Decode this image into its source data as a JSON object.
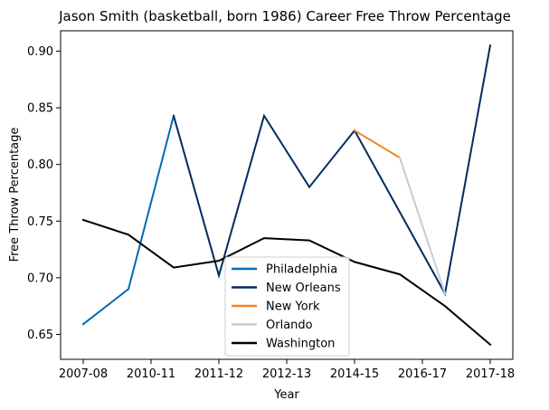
{
  "chart_data": {
    "type": "line",
    "title": "Jason Smith (basketball, born 1986) Career Free Throw Percentage",
    "xlabel": "Year",
    "ylabel": "Free Throw Percentage",
    "x_ticks": [
      "2007-08",
      "2010-11",
      "2011-12",
      "2012-13",
      "2014-15",
      "2016-17",
      "2017-18"
    ],
    "xlim": [
      -0.5,
      9.5
    ],
    "ylim": [
      0.628,
      0.918
    ],
    "y_ticks": [
      0.65,
      0.7,
      0.75,
      0.8,
      0.85,
      0.9
    ],
    "legend_position": "bottom-center",
    "grid": false,
    "series": [
      {
        "name": "Philadelphia",
        "color": "#006bb6",
        "x": [
          0,
          1,
          2
        ],
        "y": [
          0.659,
          0.69,
          0.843
        ]
      },
      {
        "name": "New Orleans",
        "color": "#002b5c",
        "x": [
          2,
          3,
          4,
          5,
          6,
          8,
          9
        ],
        "y": [
          0.843,
          0.702,
          0.843,
          0.78,
          0.83,
          0.686,
          0.905
        ]
      },
      {
        "name": "New York",
        "color": "#f58426",
        "x": [
          6,
          7
        ],
        "y": [
          0.83,
          0.806
        ]
      },
      {
        "name": "Orlando",
        "color": "#c4ced4",
        "x": [
          7,
          8
        ],
        "y": [
          0.806,
          0.686
        ]
      },
      {
        "name": "Washington",
        "color": "#000000",
        "x": [
          0,
          1,
          2,
          3,
          4,
          5,
          6,
          7,
          8,
          9
        ],
        "y": [
          0.751,
          0.738,
          0.709,
          0.715,
          0.735,
          0.733,
          0.714,
          0.703,
          0.675,
          0.641
        ]
      }
    ]
  }
}
